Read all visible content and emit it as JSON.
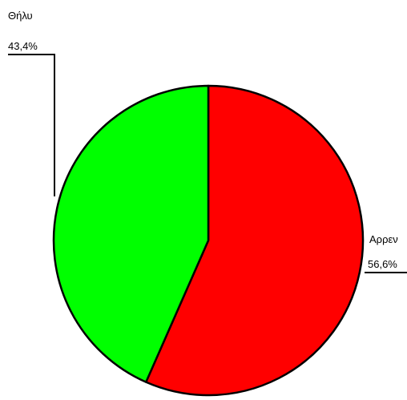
{
  "chart_data": {
    "type": "pie",
    "slices": [
      {
        "label": "Αρρεν",
        "value": 56.6,
        "pct_label": "56,6%",
        "color": "#ff0000"
      },
      {
        "label": "Θήλυ",
        "value": 43.4,
        "pct_label": "43,4%",
        "color": "#00ff00"
      }
    ],
    "start_angle": "12 o'clock",
    "direction": "clockwise",
    "legend": "none"
  }
}
